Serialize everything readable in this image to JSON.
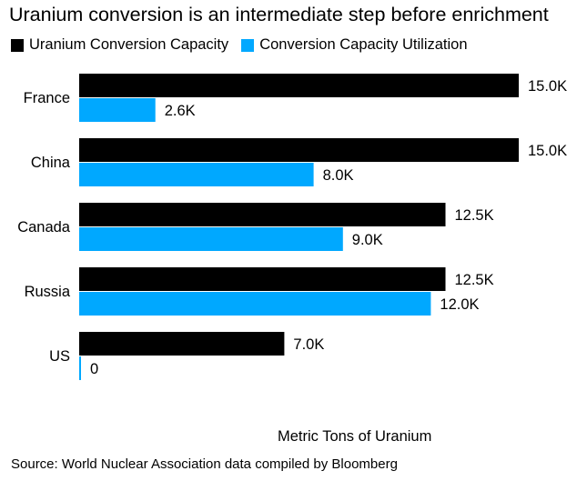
{
  "title": "Uranium conversion is an intermediate step before enrichment",
  "legend": [
    {
      "label": "Uranium Conversion Capacity",
      "color": "#000000"
    },
    {
      "label": "Conversion Capacity Utilization",
      "color": "#00a8ff"
    }
  ],
  "axis_note": "Metric Tons of Uranium",
  "source": "Source: World Nuclear Association data compiled by Bloomberg",
  "chart_data": {
    "type": "bar",
    "orientation": "horizontal",
    "categories": [
      "France",
      "China",
      "Canada",
      "Russia",
      "US"
    ],
    "series": [
      {
        "name": "Uranium Conversion Capacity",
        "color": "#000000",
        "values": [
          15000,
          15000,
          12500,
          12500,
          7000
        ],
        "labels": [
          "15.0K",
          "15.0K",
          "12.5K",
          "12.5K",
          "7.0K"
        ]
      },
      {
        "name": "Conversion Capacity Utilization",
        "color": "#00a8ff",
        "values": [
          2600,
          8000,
          9000,
          12000,
          0
        ],
        "labels": [
          "2.6K",
          "8.0K",
          "9.0K",
          "12.0K",
          "0"
        ]
      }
    ],
    "xlabel": "Metric Tons of Uranium",
    "xlim": [
      0,
      15000
    ],
    "grid": false,
    "legend_position": "top-left"
  }
}
